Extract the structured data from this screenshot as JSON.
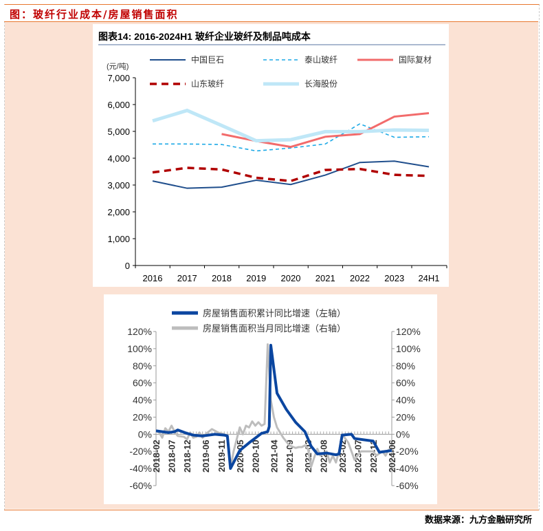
{
  "header": {
    "title": "图：玻纤行业成本/房屋销售面积"
  },
  "footer": {
    "source": "数据来源：九方金融研究所"
  },
  "chart_data": [
    {
      "type": "line",
      "title": "图表14:  2016-2024H1 玻纤企业玻纤及制品吨成本",
      "ylabel": "(元/吨)",
      "xlabel": "",
      "categories": [
        "2016",
        "2017",
        "2018",
        "2019",
        "2020",
        "2021",
        "2022",
        "2023",
        "24H1"
      ],
      "ylim": [
        0,
        7000
      ],
      "yticks": [
        "0",
        "1,000",
        "2,000",
        "3,000",
        "4,000",
        "5,000",
        "6,000",
        "7,000"
      ],
      "grid": false,
      "legend_position": "top",
      "series": [
        {
          "name": "中国巨石",
          "color": "#1f4e8c",
          "style": "solid",
          "values": [
            3150,
            2880,
            2920,
            3180,
            3020,
            3370,
            3840,
            3890,
            3680
          ]
        },
        {
          "name": "泰山玻纤",
          "color": "#1ca9e6",
          "style": "dashed",
          "values": [
            4530,
            4530,
            4510,
            4270,
            4380,
            4530,
            5280,
            4780,
            4800
          ]
        },
        {
          "name": "国际复材",
          "color": "#f26b6b",
          "style": "solid",
          "values": [
            null,
            null,
            4900,
            4640,
            4420,
            4800,
            4900,
            5550,
            5680
          ]
        },
        {
          "name": "山东玻纤",
          "color": "#b00000",
          "style": "dashed",
          "values": [
            3470,
            3640,
            3580,
            3270,
            3150,
            3560,
            3600,
            3380,
            3340
          ]
        },
        {
          "name": "长海股份",
          "color": "#bfe7f7",
          "style": "solid",
          "values": [
            5390,
            5780,
            5220,
            4650,
            4690,
            4990,
            4990,
            5050,
            5040
          ]
        }
      ]
    },
    {
      "type": "line",
      "title": "",
      "ylim_left": [
        -60,
        120
      ],
      "ylim_right": [
        -60,
        120
      ],
      "yticks": [
        "120%",
        "100%",
        "80%",
        "60%",
        "40%",
        "20%",
        "0%",
        "-20%",
        "-40%",
        "-60%"
      ],
      "xticks": [
        "2018-02",
        "2018-07",
        "2018-12",
        "2019-06",
        "2019-11",
        "2020-05",
        "2020-10",
        "2021-04",
        "2021-09",
        "2022-03",
        "2022-08",
        "2023-02",
        "2023-07",
        "2023-12",
        "2024-06"
      ],
      "x_start": "2018-02",
      "x_months": 76,
      "series": [
        {
          "name": "房屋销售面积累计同比增速（左轴）",
          "axis": "left",
          "color": "#0b46a0",
          "points": [
            [
              0,
              4
            ],
            [
              2,
              3
            ],
            [
              4,
              2
            ],
            [
              6,
              3
            ],
            [
              7,
              5
            ],
            [
              10,
              1
            ],
            [
              12,
              -1
            ],
            [
              15,
              -2
            ],
            [
              19,
              0
            ],
            [
              22,
              -1
            ],
            [
              23,
              -2
            ],
            [
              24,
              -40
            ],
            [
              27,
              -19
            ],
            [
              30,
              -10
            ],
            [
              34,
              1
            ],
            [
              36,
              3
            ],
            [
              36.5,
              9
            ],
            [
              37,
              104
            ],
            [
              39,
              48
            ],
            [
              42,
              29
            ],
            [
              45,
              14
            ],
            [
              48,
              3
            ],
            [
              50,
              -14
            ],
            [
              52,
              -23
            ],
            [
              55,
              -22
            ],
            [
              58,
              -24
            ],
            [
              59,
              -23
            ],
            [
              60,
              -1
            ],
            [
              63,
              0
            ],
            [
              64,
              -5
            ],
            [
              70,
              -8
            ],
            [
              72,
              -21
            ],
            [
              76,
              -19
            ]
          ]
        },
        {
          "name": "房屋销售面积当月同比增速（右轴）",
          "axis": "right",
          "color": "#bdbdbd",
          "points": [
            [
              0,
              4
            ],
            [
              1,
              2
            ],
            [
              2,
              -4
            ],
            [
              3,
              7
            ],
            [
              4,
              3
            ],
            [
              5,
              10
            ],
            [
              6,
              3
            ],
            [
              7,
              -2
            ],
            [
              9,
              -3
            ],
            [
              10,
              -6
            ],
            [
              11,
              2
            ],
            [
              12,
              -4
            ],
            [
              13,
              -3
            ],
            [
              14,
              2
            ],
            [
              15,
              -4
            ],
            [
              16,
              0
            ],
            [
              18,
              6
            ],
            [
              20,
              2
            ],
            [
              22,
              0
            ],
            [
              23,
              -2
            ],
            [
              24,
              -40
            ],
            [
              25,
              -20
            ],
            [
              27,
              8
            ],
            [
              28,
              0
            ],
            [
              29,
              10
            ],
            [
              30,
              8
            ],
            [
              31,
              15
            ],
            [
              32,
              10
            ],
            [
              33,
              14
            ],
            [
              34,
              10
            ],
            [
              35,
              12
            ],
            [
              36,
              105
            ],
            [
              37,
              40
            ],
            [
              38,
              20
            ],
            [
              39,
              8
            ],
            [
              41,
              -4
            ],
            [
              43,
              -13
            ],
            [
              45,
              -16
            ],
            [
              46,
              -15
            ],
            [
              47,
              -15
            ],
            [
              48,
              -13
            ],
            [
              49,
              -17
            ],
            [
              50,
              -38
            ],
            [
              51,
              -27
            ],
            [
              52,
              -17
            ],
            [
              53,
              -25
            ],
            [
              55,
              -20
            ],
            [
              56,
              -33
            ],
            [
              57,
              -25
            ],
            [
              58,
              -33
            ],
            [
              59,
              -20
            ],
            [
              60,
              0
            ],
            [
              62,
              -10
            ],
            [
              64,
              -30
            ],
            [
              66,
              -20
            ],
            [
              70,
              -20
            ],
            [
              71,
              -25
            ],
            [
              73,
              -20
            ],
            [
              74,
              -25
            ],
            [
              75,
              -18
            ],
            [
              76,
              -19
            ]
          ]
        }
      ]
    }
  ]
}
